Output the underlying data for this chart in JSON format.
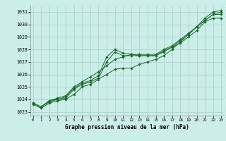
{
  "xlabel": "Graphe pression niveau de la mer (hPa)",
  "bg_color": "#cceee8",
  "grid_color": "#aad4ce",
  "line_color": "#1a6b2a",
  "x_ticks": [
    0,
    1,
    2,
    3,
    4,
    5,
    6,
    7,
    8,
    9,
    10,
    11,
    12,
    13,
    14,
    15,
    16,
    17,
    18,
    19,
    20,
    21,
    22,
    23
  ],
  "xlim": [
    -0.3,
    23.3
  ],
  "ylim": [
    1022.7,
    1031.5
  ],
  "y_ticks": [
    1023,
    1024,
    1025,
    1026,
    1027,
    1028,
    1029,
    1030,
    1031
  ],
  "series": [
    [
      1023.7,
      1023.4,
      1023.8,
      1024.0,
      1024.1,
      1024.8,
      1025.2,
      1025.4,
      1025.7,
      1027.0,
      1027.8,
      1027.5,
      1027.5,
      1027.5,
      1027.5,
      1027.5,
      1027.9,
      1028.2,
      1028.5,
      1029.0,
      1029.5,
      1030.2,
      1030.5,
      1030.5
    ],
    [
      1023.7,
      1023.4,
      1023.9,
      1024.0,
      1024.2,
      1024.9,
      1025.3,
      1025.5,
      1025.9,
      1027.4,
      1028.0,
      1027.7,
      1027.6,
      1027.6,
      1027.6,
      1027.6,
      1028.0,
      1028.3,
      1028.8,
      1029.3,
      1029.8,
      1030.3,
      1030.8,
      1030.8
    ],
    [
      1023.6,
      1023.3,
      1023.7,
      1023.9,
      1024.0,
      1024.4,
      1025.0,
      1025.2,
      1025.6,
      1026.0,
      1026.4,
      1026.5,
      1026.5,
      1026.8,
      1027.0,
      1027.2,
      1027.5,
      1028.0,
      1028.6,
      1029.2,
      1029.8,
      1030.5,
      1031.0,
      1031.1
    ],
    [
      1023.7,
      1023.4,
      1023.9,
      1024.1,
      1024.3,
      1025.0,
      1025.4,
      1025.8,
      1026.2,
      1026.7,
      1027.2,
      1027.4,
      1027.6,
      1027.5,
      1027.5,
      1027.5,
      1027.8,
      1028.2,
      1028.7,
      1029.2,
      1029.8,
      1030.3,
      1030.8,
      1031.0
    ]
  ]
}
